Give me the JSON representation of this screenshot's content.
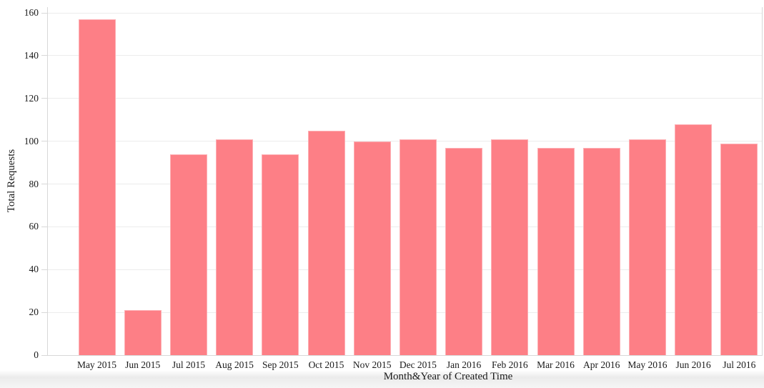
{
  "chart_data": {
    "type": "bar",
    "title": "",
    "xlabel": "Month&Year of Created Time",
    "ylabel": "Total Requests",
    "categories": [
      "May 2015",
      "Jun 2015",
      "Jul 2015",
      "Aug 2015",
      "Sep 2015",
      "Oct 2015",
      "Nov 2015",
      "Dec 2015",
      "Jan 2016",
      "Feb 2016",
      "Mar 2016",
      "Apr 2016",
      "May 2016",
      "Jun 2016",
      "Jul 2016"
    ],
    "values": [
      157,
      21,
      94,
      101,
      94,
      105,
      100,
      101,
      97,
      101,
      97,
      97,
      101,
      108,
      99
    ],
    "yticks": [
      0,
      20,
      40,
      60,
      80,
      100,
      120,
      140,
      160
    ],
    "ylim": [
      0,
      160
    ],
    "grid": "horizontal",
    "legend": "none",
    "colors": {
      "bar_fill": "#fd7f86",
      "bar_border": "#fdafb4",
      "gridline": "#ececec",
      "axis_line": "#d8d8d8",
      "text": "#1a1a1a"
    }
  }
}
